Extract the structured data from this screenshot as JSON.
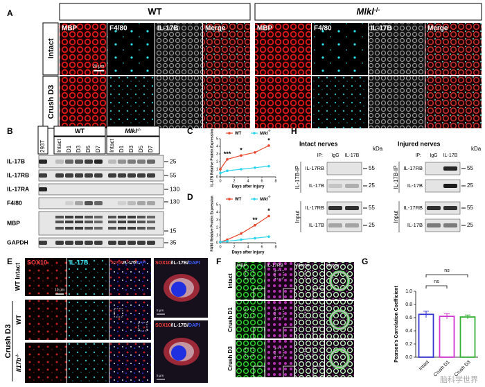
{
  "panel_letters": [
    "A",
    "B",
    "C",
    "D",
    "E",
    "F",
    "G",
    "H"
  ],
  "panel_a": {
    "groups": [
      {
        "name": "WT"
      },
      {
        "name": "Mlkl",
        "sup": "-/-"
      }
    ],
    "rows": [
      "Intact",
      "Crush D3"
    ],
    "channels": [
      "MBP",
      "F4/80",
      "IL-17B",
      "Merge"
    ],
    "scale_bar": "20 μm"
  },
  "panel_b": {
    "columns": [
      "293T",
      "Intact",
      "D1",
      "D3",
      "D5",
      "D7",
      "Intact",
      "D1",
      "D3",
      "D5",
      "D7"
    ],
    "groups": [
      {
        "name": "WT"
      },
      {
        "name": "Mlkl",
        "sup": "-/-"
      }
    ],
    "rows": [
      {
        "label": "IL-17B",
        "kda": 25
      },
      {
        "label": "IL-17RB",
        "kda": 55
      },
      {
        "label": "IL-17RA",
        "kda": 130
      },
      {
        "label": "F4/80",
        "kda": 130
      },
      {
        "label": "MBP",
        "kda": 15
      },
      {
        "label": "GAPDH",
        "kda": 35
      }
    ]
  },
  "panel_e": {
    "channels": [
      "SOX10",
      "IL-17B"
    ],
    "merge": [
      "SOX10",
      "IL-17B",
      "DAPI"
    ],
    "merge_separator": "/",
    "row_intact": "WT Intact",
    "crush_group": "Crush D3",
    "crush_rows": [
      {
        "name": "WT"
      },
      {
        "name": "Il17b",
        "sup": "-/-"
      }
    ],
    "scale_bar": "10 μm",
    "inset_scale_bar": "5 μm"
  },
  "panel_f": {
    "channels": [
      "MBP",
      "IL-17RB",
      "Merge",
      "Merge"
    ],
    "rows": [
      "Intact",
      "Crush D1",
      "Crush D3"
    ]
  },
  "panel_h": {
    "blocks": [
      {
        "title": "Intact nerves",
        "ip_label": "IP:",
        "ip_lanes": [
          "IgG",
          "IL-17B"
        ],
        "kda_label": "kDa",
        "sections": [
          {
            "label": "IL-17B-IP",
            "rows": [
              {
                "label": "IL-17RB",
                "kda": 55
              },
              {
                "label": "IL-17B",
                "kda": 25
              }
            ]
          },
          {
            "label": "Input",
            "rows": [
              {
                "label": "IL-17RB",
                "kda": 55
              },
              {
                "label": "IL-17B",
                "kda": 25
              }
            ]
          }
        ]
      },
      {
        "title": "Injured nerves",
        "ip_label": "IP:",
        "ip_lanes": [
          "IgG",
          "IL-17B"
        ],
        "kda_label": "kDa",
        "sections": [
          {
            "label": "IL-17B-IP",
            "rows": [
              {
                "label": "IL-17RB",
                "kda": 55
              },
              {
                "label": "IL-17B",
                "kda": 25
              }
            ]
          },
          {
            "label": "Input",
            "rows": [
              {
                "label": "IL-17RB",
                "kda": 55
              },
              {
                "label": "IL-17B",
                "kda": 25
              }
            ]
          }
        ]
      }
    ]
  },
  "watermark": "脑科学世界",
  "chart_data": [
    {
      "type": "line",
      "y_label": "IL-17B Relative Protein Expression",
      "x_label": "Days after Injury",
      "x": [
        0,
        1,
        3,
        5,
        7
      ],
      "xlim": [
        0,
        8
      ],
      "xticks": [
        0,
        2,
        4,
        6,
        8
      ],
      "ylim": [
        0,
        5
      ],
      "yticks": [
        0,
        1,
        2,
        3,
        4,
        5
      ],
      "series": [
        {
          "name": "WT",
          "color": "#e8472c",
          "values": [
            1.0,
            2.3,
            2.8,
            3.2,
            4.1
          ]
        },
        {
          "name": "Mlkl",
          "sup": "-/-",
          "color": "#2ad4ee",
          "values": [
            0.5,
            0.8,
            1.0,
            1.2,
            1.4
          ]
        }
      ],
      "annotations": [
        {
          "x": 1,
          "text": "***"
        },
        {
          "x": 3,
          "text": "*"
        },
        {
          "x": 7,
          "text": "*"
        }
      ]
    },
    {
      "type": "line",
      "y_label": "F4/80 Relative Protein Expression",
      "x_label": "Days after Injury",
      "x": [
        0,
        1,
        3,
        5,
        7
      ],
      "xlim": [
        0,
        8
      ],
      "xticks": [
        0,
        2,
        4,
        6,
        8
      ],
      "ylim": [
        0,
        5
      ],
      "yticks": [
        0,
        1,
        2,
        3,
        4,
        5
      ],
      "series": [
        {
          "name": "WT",
          "color": "#e8472c",
          "values": [
            0.1,
            0.4,
            1.2,
            2.3,
            3.5
          ]
        },
        {
          "name": "Mlkl",
          "sup": "-/-",
          "color": "#2ad4ee",
          "values": [
            0.1,
            0.2,
            0.4,
            0.6,
            0.8
          ]
        }
      ],
      "annotations": [
        {
          "x": 5,
          "text": "**"
        },
        {
          "x": 7,
          "text": "*"
        }
      ]
    },
    {
      "type": "bar",
      "y_label": "Pearson's Correlation Coefficient",
      "categories": [
        "Intact",
        "Crush D1",
        "Crush D3"
      ],
      "values": [
        0.65,
        0.62,
        0.61
      ],
      "errors": [
        0.05,
        0.04,
        0.03
      ],
      "colors": [
        "#3535d0",
        "#d035d0",
        "#35b035"
      ],
      "ylim": [
        0,
        1
      ],
      "yticks": [
        {
          "value": 0,
          "label": "0.0"
        },
        0.2,
        0.4,
        0.6,
        0.8,
        {
          "value": 1,
          "label": "1.0"
        }
      ],
      "comparisons": [
        {
          "pair": [
            0,
            1
          ],
          "text": "ns"
        },
        {
          "pair": [
            0,
            2
          ],
          "text": "ns"
        }
      ]
    }
  ]
}
